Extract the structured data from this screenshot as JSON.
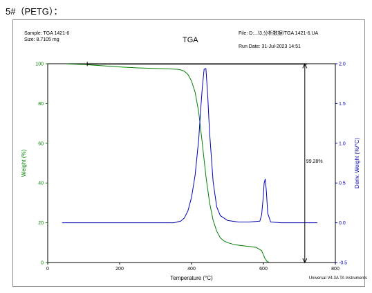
{
  "heading": "5#（PETG）：",
  "header": {
    "sample": "Sample: TGA 1421-6",
    "size": "Size:  8.7105 mg",
    "title": "TGA",
    "file": "File: D:...\\3.分析数据\\TGA 1421-6.UA",
    "run_date": "Run Date: 31-Jul-2023 14:51"
  },
  "footer": "Universal V4.3A TA Instruments",
  "colors": {
    "weight": "#008000",
    "deriv": "#0000b4",
    "axes": "#000000"
  },
  "chart_data": {
    "type": "line",
    "title": "TGA",
    "xlabel": "Temperature (°C)",
    "ylabel": "Weight (%)",
    "y2label": "Deriv. Weight (%/°C)",
    "xlim": [
      0,
      800
    ],
    "ylim": [
      0,
      100
    ],
    "y2lim": [
      -0.5,
      2.0
    ],
    "x_ticks": [
      "0",
      "200",
      "400",
      "600",
      "800"
    ],
    "y_ticks": [
      "0",
      "20",
      "40",
      "60",
      "80",
      "100"
    ],
    "y2_ticks": [
      "-0.5",
      "0.0",
      "0.5",
      "1.0",
      "1.5",
      "2.0"
    ],
    "annotation": "99.28%",
    "series": [
      {
        "name": "Weight",
        "axis": "left",
        "x": [
          50,
          100,
          150,
          200,
          250,
          300,
          340,
          360,
          370,
          380,
          390,
          400,
          410,
          420,
          430,
          440,
          450,
          460,
          470,
          480,
          490,
          500,
          520,
          540,
          560,
          580,
          595,
          600,
          605,
          610,
          615
        ],
        "y": [
          99.9,
          99.6,
          99.0,
          98.4,
          97.9,
          97.6,
          97.4,
          97.2,
          96.9,
          96.2,
          94.6,
          91.3,
          85.6,
          75.6,
          59.9,
          43.4,
          30.3,
          21.3,
          15.8,
          12.4,
          10.9,
          10.0,
          9.0,
          8.5,
          8.1,
          7.6,
          6.0,
          3.8,
          1.7,
          0.6,
          0.2
        ]
      },
      {
        "name": "Deriv. Weight",
        "axis": "right",
        "x": [
          40,
          100,
          200,
          300,
          350,
          370,
          380,
          390,
          400,
          410,
          420,
          425,
          430,
          435,
          440,
          445,
          450,
          460,
          470,
          480,
          500,
          530,
          560,
          590,
          595,
          600,
          602,
          605,
          608,
          612,
          620,
          650,
          700,
          750
        ],
        "y": [
          0.0,
          0.0,
          0.0,
          0.0,
          0.0,
          0.02,
          0.06,
          0.15,
          0.32,
          0.6,
          1.05,
          1.4,
          1.7,
          1.93,
          1.94,
          1.6,
          1.15,
          0.52,
          0.2,
          0.09,
          0.03,
          0.01,
          0.01,
          0.02,
          0.1,
          0.35,
          0.5,
          0.55,
          0.4,
          0.12,
          0.01,
          0.0,
          0.0,
          0.0
        ]
      }
    ]
  }
}
